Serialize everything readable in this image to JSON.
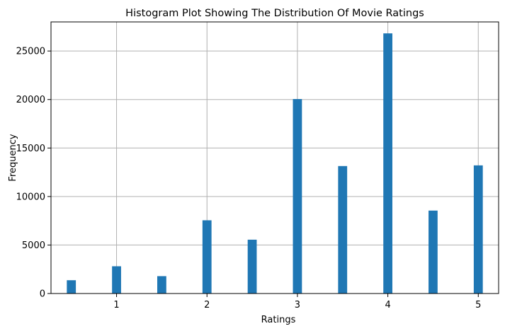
{
  "chart_data": {
    "type": "bar",
    "title": "Histogram Plot Showing The Distribution Of Movie Ratings",
    "xlabel": "Ratings",
    "ylabel": "Frequency",
    "xlim": [
      0.275,
      5.225
    ],
    "ylim": [
      0,
      28000
    ],
    "grid": true,
    "bar_color": "#1f77b4",
    "bin_width": 0.1,
    "x": [
      0.5,
      1.0,
      1.5,
      2.0,
      2.5,
      3.0,
      3.5,
      4.0,
      4.5,
      5.0
    ],
    "values": [
      1370,
      2810,
      1790,
      7550,
      5550,
      20050,
      13140,
      26820,
      8550,
      13210
    ],
    "xticks": [
      1,
      2,
      3,
      4,
      5
    ],
    "xtick_labels": [
      "1",
      "2",
      "3",
      "4",
      "5"
    ],
    "yticks": [
      0,
      5000,
      10000,
      15000,
      20000,
      25000
    ],
    "ytick_labels": [
      "0",
      "5000",
      "10000",
      "15000",
      "20000",
      "25000"
    ]
  }
}
